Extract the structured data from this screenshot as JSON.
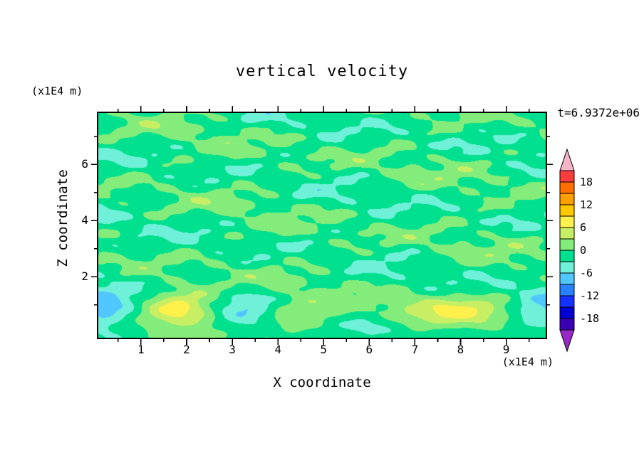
{
  "chart": {
    "title": "vertical velocity",
    "time_label": "t=6.9372e+06",
    "x_axis": {
      "label": "X coordinate",
      "unit": "(x1E4 m)",
      "min": 0.05,
      "max": 9.88,
      "major_ticks": [
        {
          "v": 1,
          "label": "1"
        },
        {
          "v": 2,
          "label": "2"
        },
        {
          "v": 3,
          "label": "3"
        },
        {
          "v": 4,
          "label": "4"
        },
        {
          "v": 5,
          "label": "5"
        },
        {
          "v": 6,
          "label": "6"
        },
        {
          "v": 7,
          "label": "7"
        },
        {
          "v": 8,
          "label": "8"
        },
        {
          "v": 9,
          "label": "9"
        }
      ],
      "minor_ticks": [
        0.5,
        1.5,
        2.5,
        3.5,
        4.5,
        5.5,
        6.5,
        7.5,
        8.5,
        9.5
      ]
    },
    "z_axis": {
      "label": "Z coordinate",
      "unit": "(x1E4 m)",
      "min": -0.2,
      "max": 7.85,
      "major_ticks": [
        {
          "v": 2,
          "label": "2"
        },
        {
          "v": 4,
          "label": "4"
        },
        {
          "v": 6,
          "label": "6"
        }
      ],
      "minor_ticks": [
        1,
        3,
        5,
        7
      ]
    }
  },
  "chart_data": {
    "type": "heatmap",
    "title": "vertical velocity",
    "xlabel": "X coordinate (x1E4 m)",
    "ylabel": "Z coordinate (x1E4 m)",
    "time_annotation": "t=6.9372e+06",
    "grid": false,
    "legend_position": "right-colorbar",
    "x_range": [
      0.05,
      9.88
    ],
    "z_range": [
      -0.2,
      7.85
    ],
    "contour_interval": 3,
    "contour_levels": [
      -21,
      -18,
      -15,
      -12,
      -9,
      -6,
      -3,
      0,
      3,
      6,
      9,
      12,
      15,
      18,
      21
    ],
    "band_colors": [
      "#3C00B4",
      "#0000D2",
      "#1432FF",
      "#2882FF",
      "#50C8FF",
      "#6FF0D8",
      "#00E08F",
      "#84EC7A",
      "#C8EE64",
      "#FFF04B",
      "#FFC800",
      "#FF9E00",
      "#FF6E00",
      "#FA3C3C"
    ],
    "below_color": "#9628C8",
    "above_color": "#F5B4C8",
    "colorbar_labels": [
      {
        "v": 18,
        "label": "18"
      },
      {
        "v": 12,
        "label": "12"
      },
      {
        "v": 6,
        "label": "6"
      },
      {
        "v": 0,
        "label": "0"
      },
      {
        "v": -6,
        "label": "-6"
      },
      {
        "v": -12,
        "label": "-12"
      },
      {
        "v": -18,
        "label": "-18"
      }
    ],
    "field_model": {
      "bias": -0.9,
      "texture_envelope": {
        "base": 0.45,
        "amp": 0.55,
        "z0": 1.3,
        "width": 0.7
      },
      "texture_waves": [
        {
          "a": 1.5,
          "kx": 0.7,
          "kz": 2.6,
          "p": 0.5
        },
        {
          "a": 1.2,
          "kx": 1.9,
          "kz": -3.8,
          "p": 2.1
        },
        {
          "a": 1.0,
          "kx": 3.1,
          "kz": 5.9,
          "p": 4.2
        },
        {
          "a": 0.8,
          "kx": 4.6,
          "kz": -7.4,
          "p": 1.1
        },
        {
          "a": 0.6,
          "kx": 6.8,
          "kz": 9.7,
          "p": 3.3
        },
        {
          "a": 0.5,
          "kx": 1.3,
          "kz": 0.6,
          "p": 0.9
        }
      ],
      "features": [
        {
          "x": 1.85,
          "z": 0.85,
          "sx": 0.55,
          "sz": 0.5,
          "a": 8.5
        },
        {
          "x": 7.85,
          "z": 0.75,
          "sx": 1.05,
          "sz": 0.38,
          "a": 7.2
        },
        {
          "x": 0.1,
          "z": 0.85,
          "sx": 0.55,
          "sz": 0.65,
          "a": -7.2
        },
        {
          "x": 3.35,
          "z": 0.8,
          "sx": 0.45,
          "sz": 0.5,
          "a": -5.0
        },
        {
          "x": 9.8,
          "z": 0.8,
          "sx": 0.6,
          "sz": 0.6,
          "a": -6.4
        },
        {
          "x": 6.0,
          "z": 0.3,
          "sx": 0.7,
          "sz": 0.35,
          "a": -3.2
        },
        {
          "x": 4.5,
          "z": 0.6,
          "sx": 0.8,
          "sz": 0.5,
          "a": 3.4
        }
      ]
    }
  }
}
